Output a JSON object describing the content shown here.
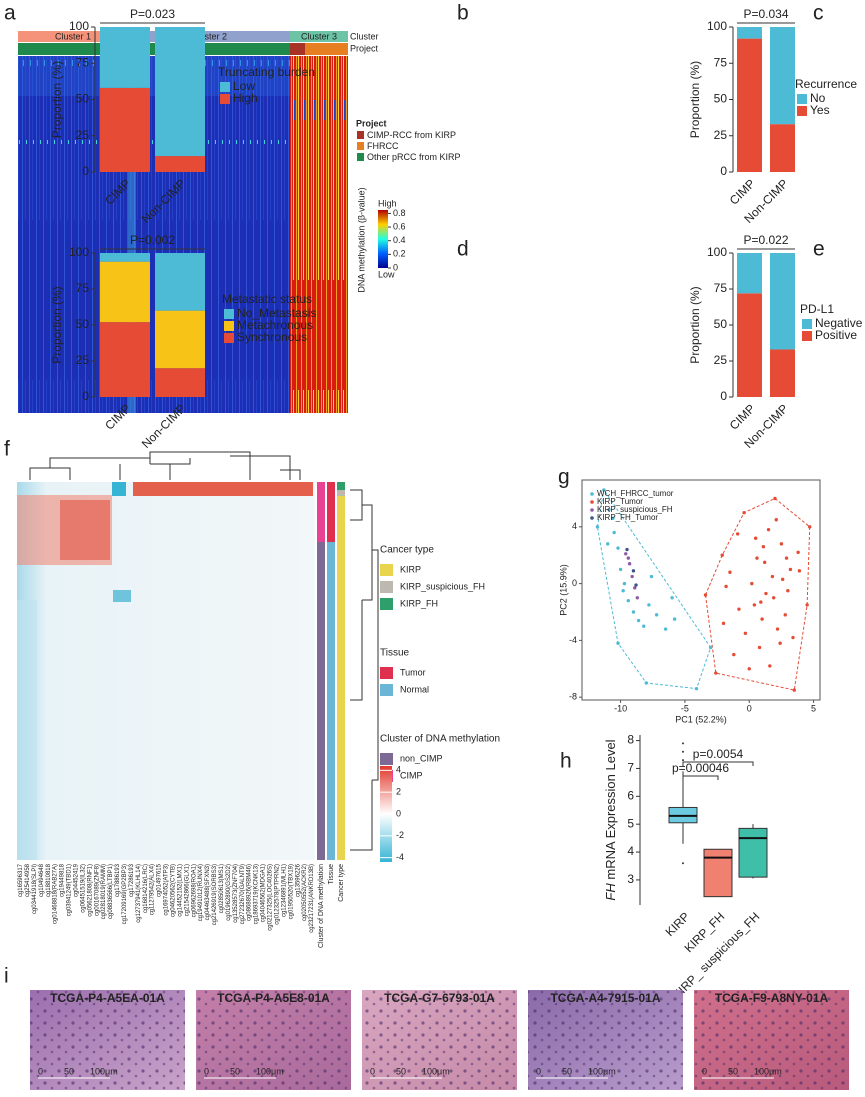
{
  "panel_labels": [
    "a",
    "b",
    "c",
    "d",
    "e",
    "f",
    "g",
    "h",
    "i"
  ],
  "heatmap_a": {
    "clusters": [
      {
        "name": "Cluster 1",
        "color": "#f4937a"
      },
      {
        "name": "Cluster 2",
        "color": "#8fa1cc"
      },
      {
        "name": "Cluster 3",
        "color": "#6cc3a6"
      }
    ],
    "track_labels": [
      "Cluster",
      "Project"
    ],
    "legend_title": "Project",
    "legend": [
      {
        "name": "CIMP-RCC from KIRP",
        "color": "#a93226"
      },
      {
        "name": "FHRCC",
        "color": "#e67e22"
      },
      {
        "name": "Other pRCC from KIRP",
        "color": "#1f8a4c"
      }
    ],
    "colorbar_title": "DNA methylation (β-value)",
    "colorbar_high": "High",
    "colorbar_low": "Low",
    "colorbar_lim": [
      0,
      0.85
    ],
    "colorbar_ticks": [
      0.8,
      0.6,
      0.4,
      0.2,
      0
    ]
  },
  "chart_data": [
    {
      "type": "stacked_bar",
      "title": "P=0.023",
      "ylabel": "Proportion (%)",
      "categories": [
        "CIMP",
        "Non-CIMP"
      ],
      "series": [
        {
          "name": "High",
          "color": "#e64b35",
          "values": [
            58,
            11
          ]
        },
        {
          "name": "Low",
          "color": "#4dbbd5",
          "values": [
            42,
            89
          ]
        }
      ],
      "legend_title": "Truncating burden",
      "ylim": [
        0,
        100
      ],
      "yticks": [
        0,
        25,
        50,
        75,
        100
      ]
    },
    {
      "type": "stacked_bar",
      "title": "P=0.034",
      "ylabel": "Proportion (%)",
      "categories": [
        "CIMP",
        "Non-CIMP"
      ],
      "series": [
        {
          "name": "Yes",
          "color": "#e64b35",
          "values": [
            92,
            33
          ]
        },
        {
          "name": "No",
          "color": "#4dbbd5",
          "values": [
            8,
            67
          ]
        }
      ],
      "legend_title": "Recurrence",
      "ylim": [
        0,
        100
      ],
      "yticks": [
        0,
        25,
        50,
        75,
        100
      ]
    },
    {
      "type": "stacked_bar",
      "title": "P=0.002",
      "ylabel": "Proportion (%)",
      "categories": [
        "CIMP",
        "Non-CIMP"
      ],
      "series": [
        {
          "name": "Synchronous",
          "color": "#e64b35",
          "values": [
            52,
            20
          ]
        },
        {
          "name": "Metachronous",
          "color": "#f7c316",
          "values": [
            42,
            40
          ]
        },
        {
          "name": "No_Metastasis",
          "color": "#4dbbd5",
          "values": [
            6,
            40
          ]
        }
      ],
      "legend_title": "Metastatic status",
      "ylim": [
        0,
        100
      ],
      "yticks": [
        0,
        25,
        50,
        75,
        100
      ]
    },
    {
      "type": "stacked_bar",
      "title": "P=0.022",
      "ylabel": "Proportion (%)",
      "categories": [
        "CIMP",
        "Non-CIMP"
      ],
      "series": [
        {
          "name": "Positive",
          "color": "#e64b35",
          "values": [
            72,
            33
          ]
        },
        {
          "name": "Negative",
          "color": "#4dbbd5",
          "values": [
            28,
            67
          ]
        }
      ],
      "legend_title": "PD-L1",
      "ylim": [
        0,
        100
      ],
      "yticks": [
        0,
        25,
        50,
        75,
        100
      ]
    },
    {
      "type": "scatter",
      "xlabel": "PC1 (52.2%)",
      "ylabel": "PC2 (15.9%)",
      "xlim": [
        -13,
        5.5
      ],
      "ylim": [
        -8.2,
        7.3
      ],
      "xticks": [
        -10,
        -5,
        0,
        5
      ],
      "yticks": [
        -8,
        -4,
        0,
        4
      ],
      "series": [
        {
          "name": "WCH_FHRCC_tumor",
          "color": "#4dbbd5",
          "hull": true,
          "x": [
            -11.3,
            -11.8,
            -10.9,
            -10.5,
            -10.2,
            -10.0,
            -9.7,
            -9.4,
            -9.0,
            -8.6,
            -8.2,
            -7.8,
            -7.2,
            -6.5,
            -5.8,
            -4.1,
            -3.0,
            -8.0,
            -10.2,
            -7.6,
            -9.8,
            -6.0,
            -11.0,
            -10.6
          ],
          "y": [
            6.6,
            4.0,
            5.2,
            3.6,
            2.5,
            1.0,
            0.0,
            -1.2,
            -2.0,
            -2.6,
            -3.0,
            -1.5,
            -2.2,
            -3.2,
            -2.5,
            -7.4,
            -4.5,
            -7.0,
            -4.2,
            0.5,
            -0.5,
            -1.0,
            2.8,
            4.6
          ]
        },
        {
          "name": "KIRP_Tumor",
          "color": "#e64b35",
          "hull": true,
          "x": [
            -3.4,
            -2.6,
            3.5,
            4.5,
            4.7,
            2.0,
            -0.4,
            -2.1,
            0.5,
            1.2,
            1.8,
            2.5,
            3.0,
            0.2,
            -0.8,
            1.0,
            2.2,
            3.2,
            -1.5,
            0.8,
            1.5,
            2.8,
            3.8,
            -0.3,
            0.6,
            1.9,
            2.6,
            -1.2,
            1.3,
            3.4,
            0.0,
            2.1,
            -2.0,
            1.1,
            2.9,
            -0.9,
            0.4,
            3.9,
            1.6,
            -1.8,
            2.4,
            0.9
          ],
          "y": [
            -0.8,
            -6.3,
            -7.5,
            -1.5,
            4.0,
            6.0,
            5.0,
            2.0,
            3.2,
            1.5,
            0.5,
            2.8,
            -0.5,
            0.0,
            -1.8,
            -2.5,
            -3.2,
            1.0,
            0.8,
            -4.5,
            3.8,
            -2.2,
            2.2,
            -3.5,
            1.8,
            -1.0,
            0.3,
            -5.0,
            -0.7,
            -3.8,
            -6.0,
            4.5,
            -2.8,
            2.6,
            1.8,
            3.5,
            -1.5,
            0.9,
            -5.8,
            -0.2,
            -4.2,
            -1.3
          ]
        },
        {
          "name": "KIRP_suspicious_FH",
          "color": "#8e5aa8",
          "hull": false,
          "x": [
            -9.6,
            -9.3,
            -9.1,
            -8.9,
            -8.7,
            -9.4
          ],
          "y": [
            2.1,
            1.4,
            0.5,
            -0.3,
            -1.0,
            1.8
          ]
        },
        {
          "name": "KIRP_FH_Tumor",
          "color": "#3c5488",
          "hull": false,
          "x": [
            -9.5,
            -9.0,
            -8.8
          ],
          "y": [
            2.4,
            0.9,
            -0.1
          ]
        }
      ]
    },
    {
      "type": "box",
      "ylabel_italic": "FH",
      "ylabel": " mRNA Expression Level",
      "categories": [
        "KIRP",
        "KIRP_FH",
        "KIRP_ suspicious_FH"
      ],
      "colors": [
        "#6ccbe0",
        "#f08070",
        "#3fbfa8"
      ],
      "min": [
        4.3,
        2.4,
        3.05
      ],
      "q1": [
        5.05,
        2.4,
        3.1
      ],
      "median": [
        5.3,
        3.8,
        4.5
      ],
      "q3": [
        5.6,
        4.1,
        4.85
      ],
      "max": [
        6.9,
        4.1,
        5.0
      ],
      "outliers": [
        [
          7.9,
          7.6,
          7.3,
          3.6
        ],
        [],
        []
      ],
      "annotations": [
        "p=0.00046",
        "p=0.0054"
      ],
      "ylim": [
        2.1,
        8.2
      ],
      "yticks": [
        3,
        4,
        5,
        6,
        7,
        8
      ]
    }
  ],
  "heatmap_f": {
    "columns": [
      "cg16596317",
      "cg25414958",
      "cg03441918(SLPI)",
      "cg10494648",
      "cg18810818",
      "cg01468818(RAB27A)",
      "cg19449818",
      "cg03941249(TBD1)",
      "cg04452419",
      "cg06451519(IL32)",
      "cg05621808(RNF1)",
      "cg00167089(ZNF8)",
      "cg02818019(RAMM)",
      "cg08836566(LTBP1)",
      "cg17886193",
      "cg17209169(GP2BP3)",
      "cg17286193",
      "cg12737941(KLHL14)",
      "cg16814216(LRC)",
      "cg11279542(ALX4)",
      "cg01497615",
      "cg16974052(ATP3)",
      "cg04620562(CYTB)",
      "cg14452152(LMX1)",
      "cg21542866(GLX1)",
      "cg06962698(ROA1)",
      "cg19491012(RUNX4)",
      "cg04463488(SFXN3)",
      "cg21426919(SORBS3)",
      "cg02850613(MS1)",
      "cg01962890(GS2D2)",
      "cg13528573(ZNF704)",
      "cg27232670(GALNT9)",
      "cg08688926(RBM46)",
      "cg18693719(KCNK13)",
      "cg04046562(MDGA1)",
      "cg02127325(LOC4026S)",
      "cg01232578(PTPRN2)",
      "cg12346891(MLH1)",
      "cg01950520(TBX19)",
      "cg13596226",
      "cg02050552(ACKR2)",
      "cg23217231(ANKRD13B)"
    ],
    "annotation_tracks": [
      "Cluster of DNA methylation",
      "Tissue",
      "Cancer type"
    ],
    "legends": [
      {
        "title": "Cancer type",
        "items": [
          {
            "name": "KIRP",
            "color": "#e8d44d"
          },
          {
            "name": "KIRP_suspicious_FH",
            "color": "#bdb8b0"
          },
          {
            "name": "KIRP_FH",
            "color": "#2e9e6b"
          }
        ]
      },
      {
        "title": "Tissue",
        "items": [
          {
            "name": "Tumor",
            "color": "#e03050"
          },
          {
            "name": "Normal",
            "color": "#6bb6d6"
          }
        ]
      },
      {
        "title": "Cluster of DNA methylation",
        "items": [
          {
            "name": "non_CIMP",
            "color": "#7d6a94"
          },
          {
            "name": "CIMP",
            "color": "#e84393"
          }
        ]
      }
    ],
    "colorbar_lim": [
      -4.4,
      4.4
    ],
    "colorbar_ticks": [
      4,
      2,
      0,
      -2,
      -4
    ]
  },
  "histology": {
    "samples": [
      "TCGA-P4-A5EA-01A",
      "TCGA-P4-A5E8-01A",
      "TCGA-G7-6793-01A",
      "TCGA-A4-7915-01A",
      "TCGA-F9-A8NY-01A"
    ],
    "scale_labels": [
      "0",
      "50",
      "100μm"
    ]
  }
}
